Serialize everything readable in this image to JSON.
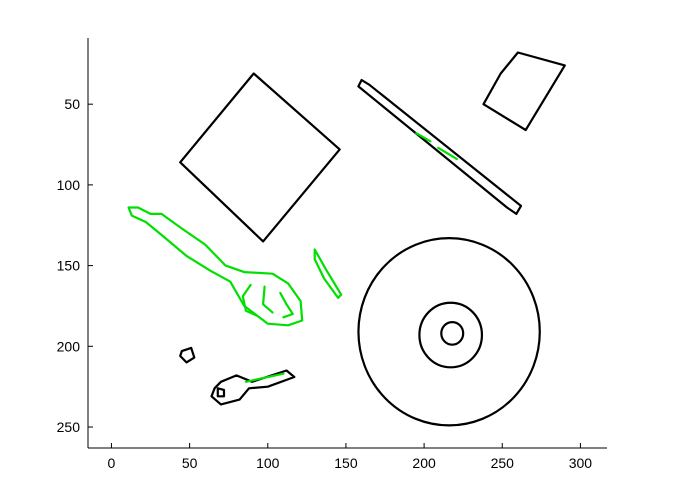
{
  "chart_data": {
    "type": "line",
    "title": "",
    "xlabel": "",
    "ylabel": "",
    "xlim": [
      -15,
      317
    ],
    "ylim": [
      263,
      9
    ],
    "y_reversed": true,
    "x_ticks": [
      0,
      50,
      100,
      150,
      200,
      250,
      300
    ],
    "y_ticks": [
      50,
      100,
      150,
      200,
      250
    ],
    "x_tick_labels": [
      "0",
      "50",
      "100",
      "150",
      "200",
      "250",
      "300"
    ],
    "y_tick_labels": [
      "50",
      "100",
      "150",
      "200",
      "250"
    ],
    "grid": false,
    "colors": {
      "outline": "#000000",
      "highlight": "#00e000"
    },
    "series": [
      {
        "color": "outline",
        "closed": true,
        "points": [
          [
            91,
            31
          ],
          [
            146,
            78
          ],
          [
            97,
            135
          ],
          [
            44,
            86
          ]
        ]
      },
      {
        "color": "outline",
        "closed": true,
        "points": [
          [
            260,
            18
          ],
          [
            290,
            26
          ],
          [
            265,
            66
          ],
          [
            238,
            50
          ],
          [
            249,
            31
          ]
        ]
      },
      {
        "color": "outline",
        "closed": true,
        "points": [
          [
            160,
            35
          ],
          [
            165,
            38
          ],
          [
            262,
            113
          ],
          [
            259,
            118
          ],
          [
            253,
            114
          ],
          [
            158,
            39
          ]
        ]
      },
      {
        "color": "outline",
        "closed": true,
        "circle": [
          216,
          191,
          58
        ]
      },
      {
        "color": "outline",
        "closed": true,
        "circle": [
          217,
          193,
          20
        ]
      },
      {
        "color": "outline",
        "closed": true,
        "circle": [
          218,
          192,
          7
        ]
      },
      {
        "color": "outline",
        "closed": true,
        "points": [
          [
            45,
            203
          ],
          [
            51,
            201
          ],
          [
            53,
            207
          ],
          [
            48,
            210
          ],
          [
            44,
            206
          ]
        ]
      },
      {
        "color": "outline",
        "closed": true,
        "points": [
          [
            70,
            222
          ],
          [
            80,
            218
          ],
          [
            90,
            222
          ],
          [
            112,
            215
          ],
          [
            117,
            219
          ],
          [
            100,
            225
          ],
          [
            88,
            226
          ],
          [
            82,
            233
          ],
          [
            70,
            236
          ],
          [
            64,
            231
          ],
          [
            66,
            226
          ]
        ]
      },
      {
        "color": "outline",
        "closed": true,
        "points": [
          [
            68,
            226
          ],
          [
            72,
            227
          ],
          [
            72,
            231
          ],
          [
            68,
            231
          ]
        ]
      },
      {
        "color": "highlight",
        "closed": true,
        "points": [
          [
            11,
            114
          ],
          [
            17,
            114
          ],
          [
            25,
            118
          ],
          [
            32,
            118
          ],
          [
            45,
            127
          ],
          [
            60,
            137
          ],
          [
            73,
            150
          ],
          [
            85,
            154
          ],
          [
            103,
            155
          ],
          [
            113,
            161
          ],
          [
            121,
            172
          ],
          [
            122,
            184
          ],
          [
            113,
            187
          ],
          [
            100,
            186
          ],
          [
            85,
            175
          ],
          [
            76,
            160
          ],
          [
            63,
            153
          ],
          [
            48,
            144
          ],
          [
            32,
            131
          ],
          [
            22,
            123
          ],
          [
            13,
            119
          ]
        ]
      },
      {
        "color": "highlight",
        "closed": false,
        "points": [
          [
            89,
            162
          ],
          [
            84,
            169
          ],
          [
            86,
            178
          ],
          [
            93,
            181
          ]
        ]
      },
      {
        "color": "highlight",
        "closed": false,
        "points": [
          [
            98,
            163
          ],
          [
            97,
            174
          ],
          [
            103,
            179
          ]
        ]
      },
      {
        "color": "highlight",
        "closed": false,
        "points": [
          [
            108,
            167
          ],
          [
            112,
            174
          ],
          [
            116,
            180
          ],
          [
            110,
            182
          ]
        ]
      },
      {
        "color": "highlight",
        "closed": true,
        "points": [
          [
            130,
            140
          ],
          [
            137,
            152
          ],
          [
            147,
            168
          ],
          [
            145,
            170
          ],
          [
            136,
            158
          ],
          [
            130,
            146
          ]
        ]
      },
      {
        "color": "highlight",
        "closed": false,
        "points": [
          [
            195,
            68
          ],
          [
            204,
            73
          ]
        ]
      },
      {
        "color": "highlight",
        "closed": false,
        "points": [
          [
            209,
            77
          ],
          [
            221,
            84
          ]
        ]
      },
      {
        "color": "highlight",
        "closed": false,
        "points": [
          [
            86,
            222
          ],
          [
            110,
            217
          ]
        ]
      }
    ]
  }
}
